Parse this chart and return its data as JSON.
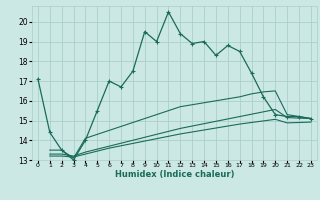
{
  "xlabel": "Humidex (Indice chaleur)",
  "bg_color": "#cce8e4",
  "grid_color": "#aacfcb",
  "line_color": "#1a6b5a",
  "xlim": [
    -0.5,
    23.5
  ],
  "ylim": [
    13,
    20.8
  ],
  "yticks": [
    13,
    14,
    15,
    16,
    17,
    18,
    19,
    20
  ],
  "xticks": [
    0,
    1,
    2,
    3,
    4,
    5,
    6,
    7,
    8,
    9,
    10,
    11,
    12,
    13,
    14,
    15,
    16,
    17,
    18,
    19,
    20,
    21,
    22,
    23
  ],
  "main_x": [
    0,
    1,
    2,
    3,
    4,
    5,
    6,
    7,
    8,
    9,
    10,
    11,
    12,
    13,
    14,
    15,
    16,
    17,
    18,
    19,
    20,
    21,
    22,
    23
  ],
  "main_y": [
    17.1,
    14.4,
    13.5,
    13.0,
    14.0,
    15.5,
    17.0,
    16.7,
    17.5,
    19.5,
    19.0,
    20.5,
    19.4,
    18.9,
    19.0,
    18.3,
    18.8,
    18.5,
    17.4,
    16.2,
    15.3,
    15.2,
    15.2,
    15.1
  ],
  "line2_x": [
    1,
    2,
    3,
    4,
    5,
    6,
    7,
    8,
    9,
    10,
    11,
    12,
    13,
    14,
    15,
    16,
    17,
    18,
    19,
    20,
    21,
    22,
    23
  ],
  "line2_y": [
    13.5,
    13.5,
    13.1,
    14.1,
    14.3,
    14.5,
    14.7,
    14.9,
    15.1,
    15.3,
    15.5,
    15.7,
    15.8,
    15.9,
    16.0,
    16.1,
    16.2,
    16.35,
    16.45,
    16.5,
    15.3,
    15.2,
    15.1
  ],
  "line3_x": [
    1,
    2,
    3,
    4,
    5,
    6,
    7,
    8,
    9,
    10,
    11,
    12,
    13,
    14,
    15,
    16,
    17,
    18,
    19,
    20,
    21,
    22,
    23
  ],
  "line3_y": [
    13.3,
    13.3,
    13.2,
    13.4,
    13.55,
    13.7,
    13.85,
    14.0,
    14.15,
    14.3,
    14.45,
    14.6,
    14.72,
    14.84,
    14.96,
    15.08,
    15.2,
    15.32,
    15.44,
    15.56,
    15.15,
    15.12,
    15.1
  ],
  "line4_x": [
    1,
    2,
    3,
    4,
    5,
    6,
    7,
    8,
    9,
    10,
    11,
    12,
    13,
    14,
    15,
    16,
    17,
    18,
    19,
    20,
    21,
    22,
    23
  ],
  "line4_y": [
    13.2,
    13.2,
    13.15,
    13.3,
    13.45,
    13.6,
    13.72,
    13.84,
    13.96,
    14.08,
    14.2,
    14.32,
    14.42,
    14.52,
    14.62,
    14.72,
    14.82,
    14.9,
    14.98,
    15.06,
    14.88,
    14.9,
    14.92
  ]
}
